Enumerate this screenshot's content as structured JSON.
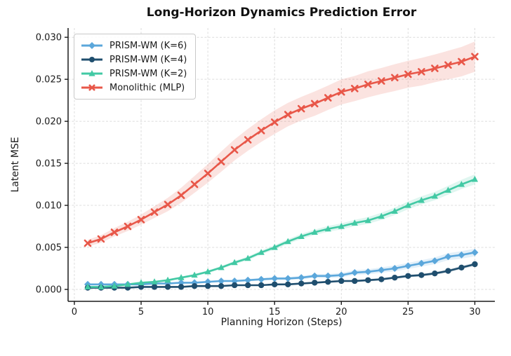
{
  "chart_data": {
    "type": "line",
    "title": "Long-Horizon Dynamics Prediction Error",
    "xlabel": "Planning Horizon (Steps)",
    "ylabel": "Latent MSE",
    "xlim": [
      -0.47,
      31.5
    ],
    "ylim": [
      -0.00142,
      0.0311
    ],
    "xticks": [
      0,
      5,
      10,
      15,
      20,
      25,
      30
    ],
    "xtick_labels": [
      "0",
      "5",
      "10",
      "15",
      "20",
      "25",
      "30"
    ],
    "yticks": [
      0.0,
      0.005,
      0.01,
      0.015,
      0.02,
      0.025,
      0.03
    ],
    "ytick_labels": [
      "0.000",
      "0.005",
      "0.010",
      "0.015",
      "0.020",
      "0.025",
      "0.030"
    ],
    "grid": "dashed",
    "legend_position": "upper left",
    "x": [
      1,
      2,
      3,
      4,
      5,
      6,
      7,
      8,
      9,
      10,
      11,
      12,
      13,
      14,
      15,
      16,
      17,
      18,
      19,
      20,
      21,
      22,
      23,
      24,
      25,
      26,
      27,
      28,
      29,
      30
    ],
    "series": [
      {
        "name": "PRISM-WM (K=6)",
        "color": "#5BA7DB",
        "marker": "diamond",
        "values": [
          0.0006,
          0.0006,
          0.0006,
          0.0006,
          0.0006,
          0.0007,
          0.0007,
          0.0008,
          0.0008,
          0.0009,
          0.001,
          0.001,
          0.0011,
          0.0012,
          0.0013,
          0.0013,
          0.0014,
          0.0016,
          0.0016,
          0.0017,
          0.002,
          0.0021,
          0.0023,
          0.0025,
          0.0028,
          0.0031,
          0.0034,
          0.0039,
          0.0041,
          0.0044
        ],
        "band": [
          0.0001,
          0.0001,
          0.0001,
          0.0001,
          0.0001,
          0.0001,
          0.0001,
          0.0001,
          0.0001,
          0.0001,
          0.00012,
          0.00012,
          0.00014,
          0.00015,
          0.00016,
          0.00018,
          0.0002,
          0.00022,
          0.00024,
          0.00026,
          0.00028,
          0.0003,
          0.00032,
          0.00034,
          0.00036,
          0.00038,
          0.0004,
          0.00042,
          0.00044,
          0.00046
        ]
      },
      {
        "name": "PRISM-WM (K=4)",
        "color": "#1F4E6E",
        "marker": "circle",
        "values": [
          0.0002,
          0.0002,
          0.0002,
          0.0002,
          0.0003,
          0.0003,
          0.0003,
          0.0003,
          0.0004,
          0.0004,
          0.0004,
          0.0005,
          0.0005,
          0.0005,
          0.0006,
          0.0006,
          0.0007,
          0.0008,
          0.0009,
          0.001,
          0.001,
          0.0011,
          0.0012,
          0.0014,
          0.0016,
          0.0017,
          0.0019,
          0.0022,
          0.0026,
          0.003
        ],
        "band": [
          5e-05,
          5e-05,
          5e-05,
          5e-05,
          5e-05,
          5e-05,
          5e-05,
          5e-05,
          5e-05,
          5e-05,
          6e-05,
          7e-05,
          8e-05,
          8e-05,
          9e-05,
          0.0001,
          0.0001,
          0.00011,
          0.00012,
          0.00012,
          0.00013,
          0.00014,
          0.00014,
          0.00015,
          0.00016,
          0.00016,
          0.00017,
          0.00018,
          0.00019,
          0.0002
        ]
      },
      {
        "name": "PRISM-WM (K=2)",
        "color": "#42C9A4",
        "marker": "triangle",
        "values": [
          0.0003,
          0.0003,
          0.0004,
          0.0006,
          0.0008,
          0.0009,
          0.0011,
          0.0014,
          0.0017,
          0.0021,
          0.0026,
          0.0032,
          0.0037,
          0.0044,
          0.005,
          0.0057,
          0.0063,
          0.0068,
          0.0072,
          0.0075,
          0.0079,
          0.0082,
          0.0087,
          0.0093,
          0.01,
          0.0106,
          0.0111,
          0.0118,
          0.0125,
          0.0131
        ],
        "band": [
          0.0001,
          0.0001,
          0.0001,
          0.0001,
          0.0001,
          0.0001,
          0.00012,
          0.00013,
          0.00015,
          0.00016,
          0.00018,
          0.0002,
          0.00022,
          0.00024,
          0.00026,
          0.00028,
          0.0003,
          0.00032,
          0.00034,
          0.00036,
          0.00038,
          0.0004,
          0.00042,
          0.00044,
          0.00046,
          0.00048,
          0.0005,
          0.00052,
          0.00055,
          0.0006
        ]
      },
      {
        "name": "Monolithic (MLP)",
        "color": "#E85749",
        "marker": "x",
        "values": [
          0.0055,
          0.006,
          0.0068,
          0.0075,
          0.0083,
          0.0092,
          0.0101,
          0.0112,
          0.0125,
          0.0138,
          0.0152,
          0.0166,
          0.0178,
          0.0189,
          0.0199,
          0.0208,
          0.0215,
          0.0221,
          0.0228,
          0.0235,
          0.0239,
          0.0244,
          0.0248,
          0.0252,
          0.0256,
          0.0259,
          0.0263,
          0.0267,
          0.0271,
          0.0277
        ],
        "band": [
          0.0004,
          0.00045,
          0.0005,
          0.00055,
          0.0006,
          0.0007,
          0.0008,
          0.0009,
          0.001,
          0.0011,
          0.0012,
          0.00125,
          0.0013,
          0.00135,
          0.0014,
          0.0014,
          0.0014,
          0.00145,
          0.00145,
          0.0015,
          0.0015,
          0.00155,
          0.00155,
          0.0016,
          0.0016,
          0.00165,
          0.00165,
          0.0017,
          0.00175,
          0.0018
        ]
      }
    ]
  }
}
